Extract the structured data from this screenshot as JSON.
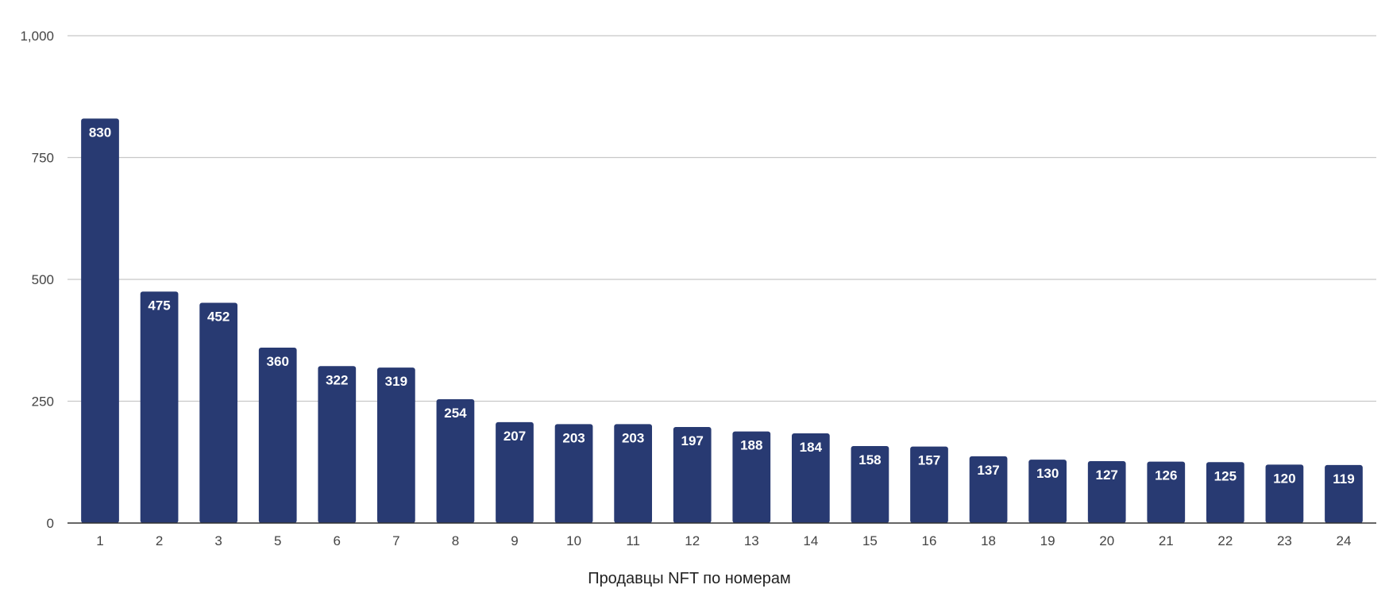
{
  "chart_data": {
    "type": "bar",
    "title": "",
    "xlabel": "Продавцы NFT по номерам",
    "ylabel": "",
    "ylim": [
      0,
      1000
    ],
    "yticks": [
      0,
      250,
      500,
      750,
      1000
    ],
    "ytick_labels": [
      "0",
      "250",
      "500",
      "750",
      "1,000"
    ],
    "grid": true,
    "legend": "none",
    "bar_color": "#283a72",
    "data_label_color": "#ffffff",
    "categories": [
      "1",
      "2",
      "3",
      "5",
      "6",
      "7",
      "8",
      "9",
      "10",
      "11",
      "12",
      "13",
      "14",
      "15",
      "16",
      "18",
      "19",
      "20",
      "21",
      "22",
      "23",
      "24"
    ],
    "values": [
      830,
      475,
      452,
      360,
      322,
      319,
      254,
      207,
      203,
      203,
      197,
      188,
      184,
      158,
      157,
      137,
      130,
      127,
      126,
      125,
      120,
      119
    ]
  }
}
